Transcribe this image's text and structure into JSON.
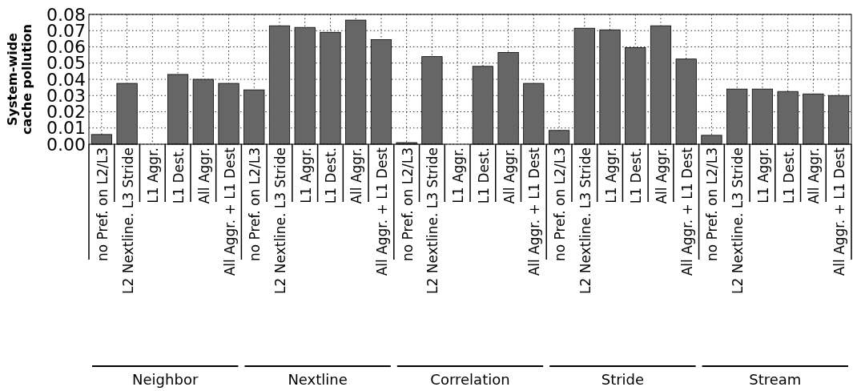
{
  "chart_data": {
    "type": "bar",
    "ylabel": "System-wide\ncache pollution",
    "categories": [
      "no Pref. on L2/L3",
      "L2 Nextline. L3 Stride",
      "L1 Aggr.",
      "L1 Dest.",
      "All Aggr.",
      "All Aggr. + L1 Dest",
      "no Pref. on L2/L3",
      "L2 Nextline. L3 Stride",
      "L1 Aggr.",
      "L1 Dest.",
      "All Aggr.",
      "All Aggr. + L1 Dest",
      "no Pref. on L2/L3",
      "L2 Nextline. L3 Stride",
      "L1 Aggr.",
      "L1 Dest.",
      "All Aggr.",
      "All Aggr. + L1 Dest",
      "no Pref. on L2/L3",
      "L2 Nextline. L3 Stride",
      "L1 Aggr.",
      "L1 Dest.",
      "All Aggr.",
      "All Aggr. + L1 Dest",
      "no Pref. on L2/L3",
      "L2 Nextline. L3 Stride",
      "L1 Aggr.",
      "L1 Dest.",
      "All Aggr.",
      "All Aggr. + L1 Dest"
    ],
    "values": [
      0.006,
      0.0375,
      0,
      0.043,
      0.04,
      0.0375,
      0.0335,
      0.073,
      0.072,
      0.069,
      0.0765,
      0.0645,
      0.001,
      0.054,
      0,
      0.048,
      0.0565,
      0.0375,
      0.0085,
      0.0715,
      0.0705,
      0.0595,
      0.073,
      0.0525,
      0.0055,
      0.034,
      0.034,
      0.0325,
      0.031,
      0.03
    ],
    "color": "#666666",
    "ylim": [
      0,
      0.08
    ],
    "yticks": [
      {
        "value": 0,
        "label": "0.00"
      },
      {
        "value": 0.01,
        "label": "0.01"
      },
      {
        "value": 0.02,
        "label": "0.02"
      },
      {
        "value": 0.03,
        "label": "0.03"
      },
      {
        "value": 0.04,
        "label": "0.04"
      },
      {
        "value": 0.05,
        "label": "0.05"
      },
      {
        "value": 0.06,
        "label": "0.06"
      },
      {
        "value": 0.07,
        "label": "0.07"
      },
      {
        "value": 0.08,
        "label": "0.08"
      }
    ],
    "grid": true,
    "annotations": [
      "Neighbor",
      "Nextline",
      "Correlation",
      "Stride",
      "Stream"
    ]
  }
}
